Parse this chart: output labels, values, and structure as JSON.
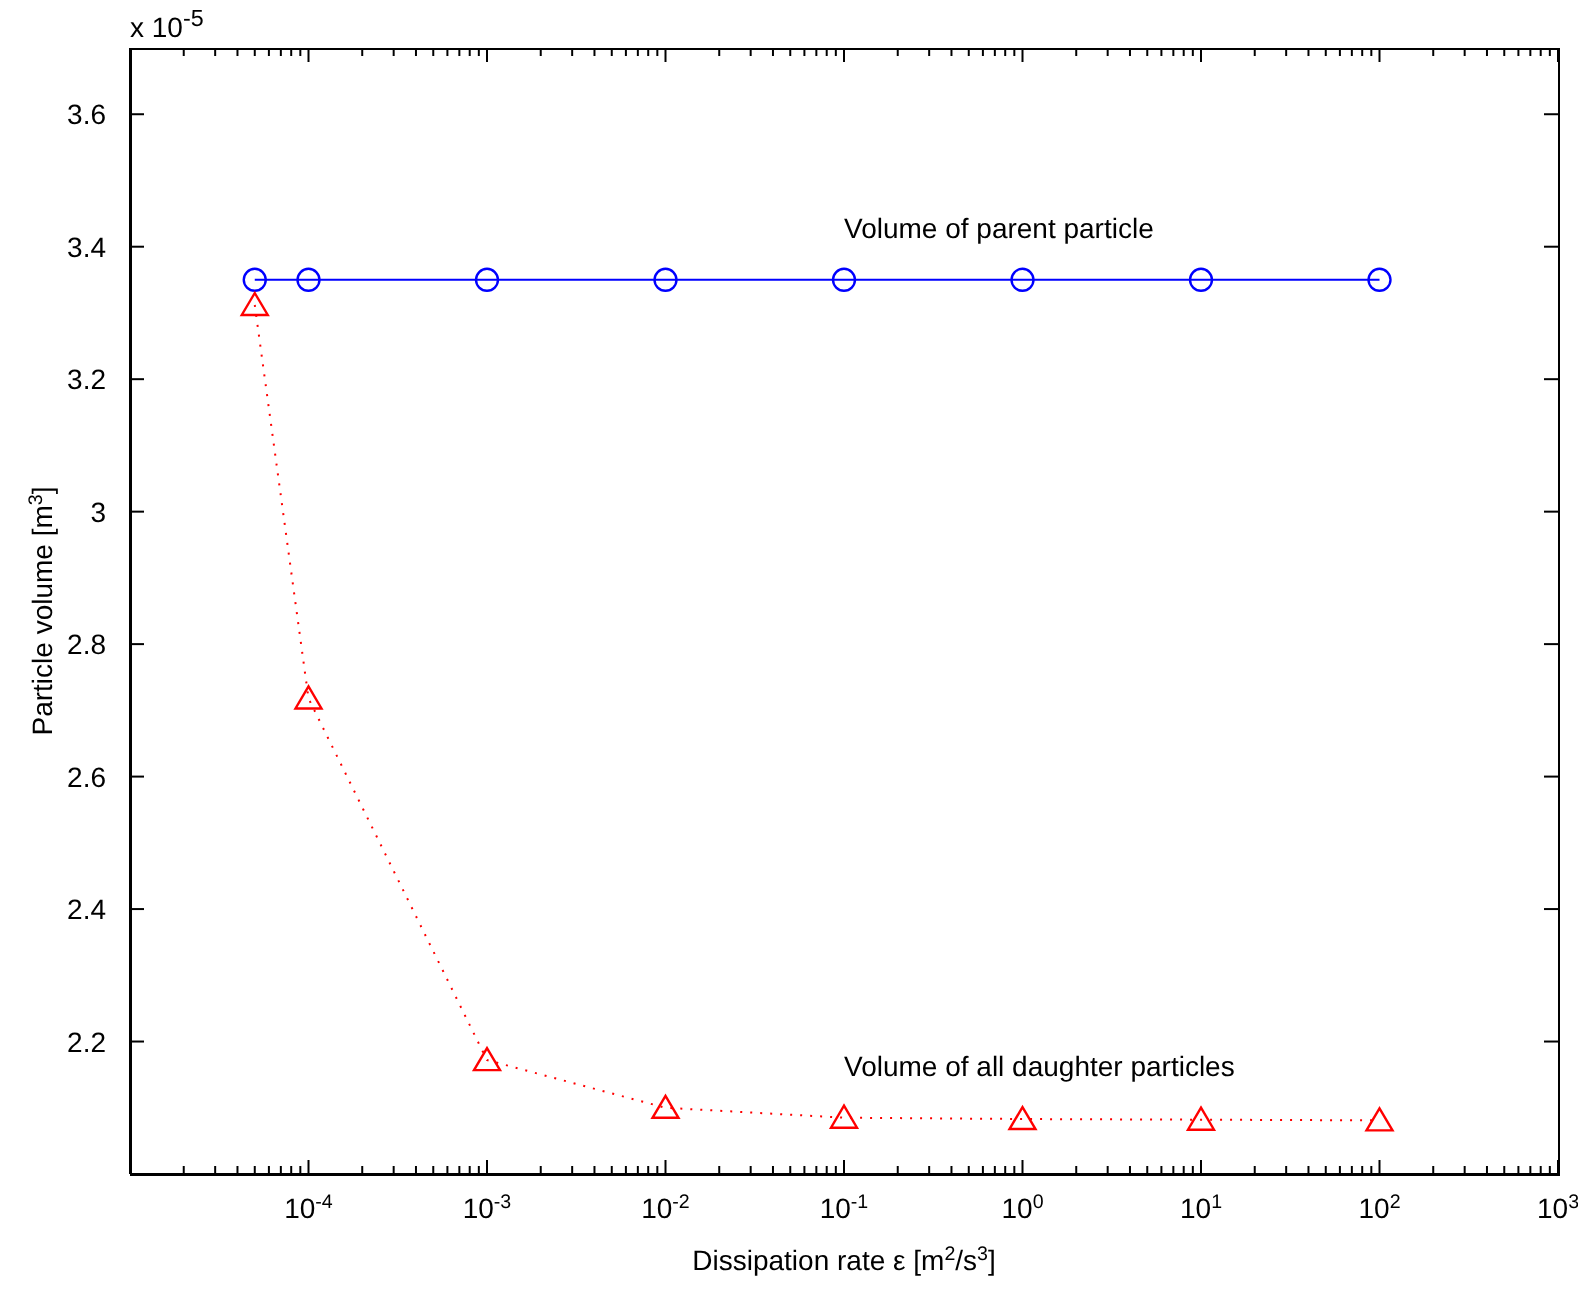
{
  "chart_data": {
    "type": "line",
    "xlabel": "Dissipation rate ε [m$^{2}$/s$^{3}$]",
    "ylabel": "Particle volume [m$^{3}$]",
    "x": [
      5e-05,
      0.0001,
      0.001,
      0.01,
      0.1,
      1,
      10,
      100
    ],
    "series": [
      {
        "name": "Volume of parent particle",
        "color": "#0000ff",
        "marker": "circle",
        "line_style": "solid",
        "values": [
          3.35,
          3.35,
          3.35,
          3.35,
          3.35,
          3.35,
          3.35,
          3.35
        ]
      },
      {
        "name": "Volume of all daughter particles",
        "color": "#ff0000",
        "marker": "triangle",
        "line_style": "dotted",
        "values": [
          3.312,
          2.718,
          2.172,
          2.1,
          2.085,
          2.083,
          2.082,
          2.081
        ]
      }
    ],
    "log": "x",
    "xlim": [
      1e-05,
      1000
    ],
    "ylim": [
      2.0,
      3.7
    ],
    "xticks": [
      {
        "value": 1e-05,
        "label": null
      },
      {
        "value": 2e-05,
        "label": null
      },
      {
        "value": 3e-05,
        "label": null
      },
      {
        "value": 4e-05,
        "label": null
      },
      {
        "value": 5e-05,
        "label": null
      },
      {
        "value": 6e-05,
        "label": null
      },
      {
        "value": 7e-05,
        "label": null
      },
      {
        "value": 8e-05,
        "label": null
      },
      {
        "value": 9e-05,
        "label": null
      },
      {
        "value": 0.0001,
        "label": "10$^{-4}$"
      },
      {
        "value": 0.0002,
        "label": null
      },
      {
        "value": 0.0003,
        "label": null
      },
      {
        "value": 0.0004,
        "label": null
      },
      {
        "value": 0.0005,
        "label": null
      },
      {
        "value": 0.0006,
        "label": null
      },
      {
        "value": 0.0007,
        "label": null
      },
      {
        "value": 0.0008,
        "label": null
      },
      {
        "value": 0.0009,
        "label": null
      },
      {
        "value": 0.001,
        "label": "10$^{-3}$"
      },
      {
        "value": 0.002,
        "label": null
      },
      {
        "value": 0.003,
        "label": null
      },
      {
        "value": 0.004,
        "label": null
      },
      {
        "value": 0.005,
        "label": null
      },
      {
        "value": 0.006,
        "label": null
      },
      {
        "value": 0.007,
        "label": null
      },
      {
        "value": 0.008,
        "label": null
      },
      {
        "value": 0.009,
        "label": null
      },
      {
        "value": 0.01,
        "label": "10$^{-2}$"
      },
      {
        "value": 0.02,
        "label": null
      },
      {
        "value": 0.03,
        "label": null
      },
      {
        "value": 0.04,
        "label": null
      },
      {
        "value": 0.05,
        "label": null
      },
      {
        "value": 0.06,
        "label": null
      },
      {
        "value": 0.07,
        "label": null
      },
      {
        "value": 0.08,
        "label": null
      },
      {
        "value": 0.09,
        "label": null
      },
      {
        "value": 0.1,
        "label": "10$^{-1}$"
      },
      {
        "value": 0.2,
        "label": null
      },
      {
        "value": 0.3,
        "label": null
      },
      {
        "value": 0.4,
        "label": null
      },
      {
        "value": 0.5,
        "label": null
      },
      {
        "value": 0.6,
        "label": null
      },
      {
        "value": 0.7,
        "label": null
      },
      {
        "value": 0.8,
        "label": null
      },
      {
        "value": 0.9,
        "label": null
      },
      {
        "value": 1,
        "label": "10$^{0}$"
      },
      {
        "value": 2,
        "label": null
      },
      {
        "value": 3,
        "label": null
      },
      {
        "value": 4,
        "label": null
      },
      {
        "value": 5,
        "label": null
      },
      {
        "value": 6,
        "label": null
      },
      {
        "value": 7,
        "label": null
      },
      {
        "value": 8,
        "label": null
      },
      {
        "value": 9,
        "label": null
      },
      {
        "value": 10,
        "label": "10$^{1}$"
      },
      {
        "value": 20,
        "label": null
      },
      {
        "value": 30,
        "label": null
      },
      {
        "value": 40,
        "label": null
      },
      {
        "value": 50,
        "label": null
      },
      {
        "value": 60,
        "label": null
      },
      {
        "value": 70,
        "label": null
      },
      {
        "value": 80,
        "label": null
      },
      {
        "value": 90,
        "label": null
      },
      {
        "value": 100,
        "label": "10$^{2}$"
      },
      {
        "value": 200,
        "label": null
      },
      {
        "value": 300,
        "label": null
      },
      {
        "value": 400,
        "label": null
      },
      {
        "value": 500,
        "label": null
      },
      {
        "value": 600,
        "label": null
      },
      {
        "value": 700,
        "label": null
      },
      {
        "value": 800,
        "label": null
      },
      {
        "value": 900,
        "label": null
      },
      {
        "value": 1000,
        "label": "10$^{3}$"
      }
    ],
    "yticks": [
      2.2,
      2.4,
      2.6,
      2.8,
      3,
      3.2,
      3.4,
      3.6
    ],
    "grid": false,
    "legend": false,
    "annotations": [
      "x 10$^{-5}$"
    ]
  }
}
